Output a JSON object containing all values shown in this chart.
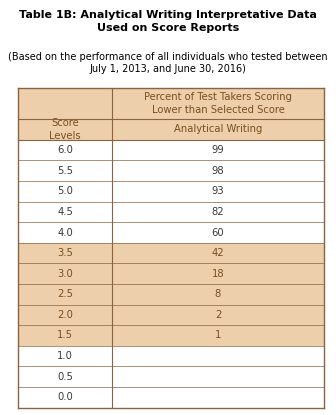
{
  "title_bold": "Table 1B: Analytical Writing Interpretative Data\nUsed on Score Reports",
  "subtitle": "(Based on the performance of all individuals who tested between\nJuly 1, 2013, and June 30, 2016)",
  "col_header_top": "Percent of Test Takers Scoring\nLower than Selected Score",
  "col_header_bottom": "Analytical Writing",
  "row_header": "Score\nLevels",
  "score_levels": [
    "6.0",
    "5.5",
    "5.0",
    "4.5",
    "4.0",
    "3.5",
    "3.0",
    "2.5",
    "2.0",
    "1.5",
    "1.0",
    "0.5",
    "0.0"
  ],
  "values": [
    "99",
    "98",
    "93",
    "82",
    "60",
    "42",
    "18",
    "8",
    "2",
    "1",
    "",
    "",
    ""
  ],
  "highlight_rows": [
    5,
    6,
    7,
    8,
    9
  ],
  "bg_color_header": "#EDCFAC",
  "bg_color_highlight": "#EDCFAC",
  "bg_color_white": "#FFFFFF",
  "border_color": "#8B6340",
  "text_color_dark": "#7B4F1E",
  "text_color_black": "#3A3A3A",
  "fig_bg": "#FFFFFF",
  "title_fontsize": 8.0,
  "subtitle_fontsize": 7.0,
  "table_fontsize": 7.2
}
